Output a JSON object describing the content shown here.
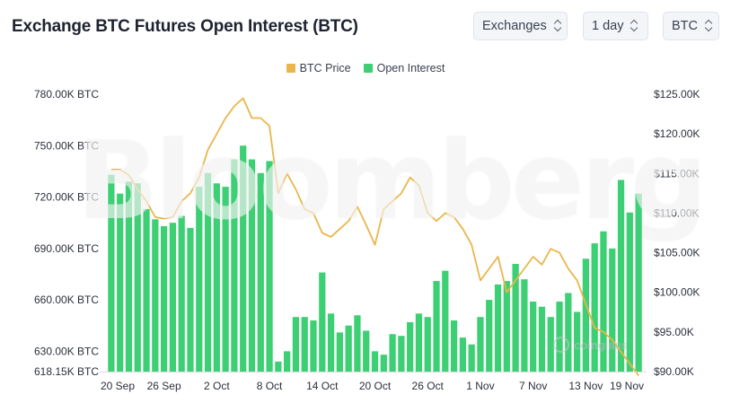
{
  "header": {
    "title": "Exchange BTC Futures Open Interest (BTC)",
    "selectors": {
      "exchanges": "Exchanges",
      "interval": "1 day",
      "unit": "BTC"
    }
  },
  "watermark": "Bloomberg",
  "brand": "coinglass",
  "colors": {
    "open_interest": "#3dcf73",
    "btc_price": "#eab64a"
  },
  "chart_data": {
    "type": "bar",
    "legend": [
      "BTC Price",
      "Open Interest"
    ],
    "legend_position": "top-center",
    "grid": false,
    "x": [
      "20 Sep",
      "21 Sep",
      "22 Sep",
      "23 Sep",
      "24 Sep",
      "25 Sep",
      "26 Sep",
      "27 Sep",
      "28 Sep",
      "29 Sep",
      "30 Sep",
      "1 Oct",
      "2 Oct",
      "3 Oct",
      "4 Oct",
      "5 Oct",
      "6 Oct",
      "7 Oct",
      "8 Oct",
      "9 Oct",
      "10 Oct",
      "11 Oct",
      "12 Oct",
      "13 Oct",
      "14 Oct",
      "15 Oct",
      "16 Oct",
      "17 Oct",
      "18 Oct",
      "19 Oct",
      "20 Oct",
      "21 Oct",
      "22 Oct",
      "23 Oct",
      "24 Oct",
      "25 Oct",
      "26 Oct",
      "27 Oct",
      "28 Oct",
      "29 Oct",
      "30 Oct",
      "31 Oct",
      "1 Nov",
      "2 Nov",
      "3 Nov",
      "4 Nov",
      "5 Nov",
      "6 Nov",
      "7 Nov",
      "8 Nov",
      "9 Nov",
      "10 Nov",
      "11 Nov",
      "12 Nov",
      "13 Nov",
      "14 Nov",
      "15 Nov",
      "16 Nov",
      "17 Nov",
      "18 Nov",
      "19 Nov"
    ],
    "x_tick_labels": [
      "20 Sep",
      "26 Sep",
      "2 Oct",
      "8 Oct",
      "14 Oct",
      "20 Oct",
      "26 Oct",
      "1 Nov",
      "7 Nov",
      "13 Nov",
      "19 Nov"
    ],
    "y_left": {
      "ylim": [
        618.15,
        780
      ],
      "tick_labels": [
        "780.00K BTC",
        "750.00K BTC",
        "720.00K BTC",
        "690.00K BTC",
        "660.00K BTC",
        "630.00K BTC",
        "618.15K BTC"
      ],
      "tick_values": [
        780,
        750,
        720,
        690,
        660,
        630,
        618.15
      ]
    },
    "y_right": {
      "ylim": [
        90,
        125
      ],
      "tick_labels": [
        "$125.00K",
        "$120.00K",
        "$115.00K",
        "$110.00K",
        "$105.00K",
        "$100.00K",
        "$95.00K",
        "$90.00K"
      ],
      "tick_values": [
        125,
        120,
        115,
        110,
        105,
        100,
        95,
        90
      ]
    },
    "series": [
      {
        "name": "Open Interest",
        "axis": "left",
        "unit": "K BTC",
        "values": [
          733,
          722,
          729,
          728,
          713,
          707,
          703,
          705,
          709,
          702,
          726,
          734,
          728,
          726,
          742,
          750,
          742,
          734,
          741,
          624,
          630,
          650,
          650,
          648,
          676,
          652,
          641,
          645,
          651,
          642,
          630,
          628,
          640,
          639,
          647,
          652,
          650,
          671,
          677,
          648,
          638,
          634,
          650,
          660,
          669,
          671,
          681,
          672,
          659,
          656,
          650,
          659,
          664,
          653,
          684,
          693,
          700,
          690,
          730,
          711,
          722
        ]
      },
      {
        "name": "BTC Price",
        "axis": "right",
        "unit": "$K",
        "values": [
          115.5,
          115.5,
          114.8,
          113.0,
          111.5,
          109.5,
          109.3,
          109.5,
          111.5,
          112.5,
          114.5,
          118.0,
          120.0,
          122.0,
          123.5,
          124.5,
          122.0,
          122.0,
          121.0,
          112.5,
          115.0,
          113.0,
          110.5,
          110.0,
          107.5,
          107.0,
          108.0,
          109.0,
          110.8,
          108.5,
          106.0,
          110.5,
          111.5,
          112.5,
          114.5,
          113.5,
          110.0,
          109.0,
          110.0,
          109.5,
          108.0,
          106.0,
          101.5,
          103.0,
          104.5,
          100.0,
          101.5,
          103.0,
          104.5,
          103.5,
          105.5,
          105.0,
          103.0,
          101.5,
          98.5,
          95.5,
          95.0,
          94.0,
          92.5,
          91.0,
          89.5
        ]
      }
    ]
  }
}
